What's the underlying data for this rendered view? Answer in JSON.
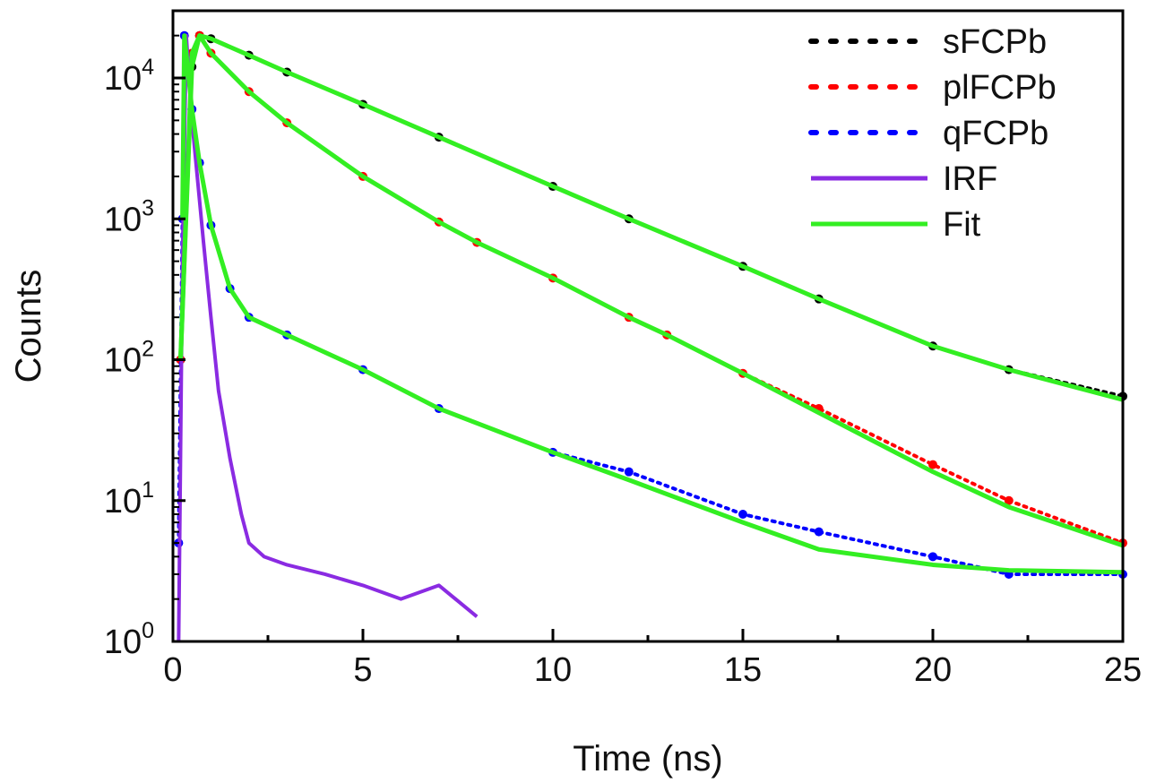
{
  "chart_data": {
    "type": "scatter",
    "xlabel": "Time (ns)",
    "ylabel": "Counts",
    "xlim": [
      0,
      25
    ],
    "ylim": [
      1,
      30000
    ],
    "yscale": "log",
    "grid": false,
    "legend_position": "top-right",
    "x_ticks": [
      0,
      5,
      10,
      15,
      20,
      25
    ],
    "x_tick_labels": [
      "0",
      "5",
      "10",
      "15",
      "20",
      "25"
    ],
    "y_ticks": [
      1,
      10,
      100,
      1000,
      10000
    ],
    "y_tick_labels": [
      {
        "base": "10",
        "exp": "0"
      },
      {
        "base": "10",
        "exp": "1"
      },
      {
        "base": "10",
        "exp": "2"
      },
      {
        "base": "10",
        "exp": "3"
      },
      {
        "base": "10",
        "exp": "4"
      }
    ],
    "series": [
      {
        "name": "sFCPb",
        "style": "dotted",
        "color": "#000000",
        "x": [
          0.2,
          0.5,
          0.7,
          1,
          2,
          3,
          5,
          7,
          10,
          12,
          15,
          17,
          20,
          22,
          25
        ],
        "y": [
          100,
          12000,
          20000,
          19000,
          14500,
          11000,
          6500,
          3800,
          1700,
          1000,
          460,
          270,
          125,
          85,
          55
        ]
      },
      {
        "name": "plFCPb",
        "style": "dotted",
        "color": "#ff0000",
        "x": [
          0.2,
          0.5,
          0.7,
          1,
          2,
          3,
          5,
          7,
          8,
          10,
          12,
          13,
          15,
          17,
          20,
          22,
          25
        ],
        "y": [
          100,
          15000,
          20000,
          15000,
          8000,
          4800,
          2000,
          950,
          680,
          380,
          200,
          150,
          80,
          45,
          18,
          10,
          5
        ]
      },
      {
        "name": "qFCPb",
        "style": "dotted",
        "color": "#0000ff",
        "x": [
          0.15,
          0.25,
          0.3,
          0.5,
          0.7,
          1,
          1.5,
          2,
          3,
          5,
          7,
          10,
          12,
          15,
          17,
          20,
          22,
          25
        ],
        "y": [
          5,
          1000,
          20000,
          6000,
          2500,
          900,
          320,
          200,
          150,
          85,
          45,
          22,
          16,
          8,
          6,
          4,
          3,
          3
        ]
      },
      {
        "name": "IRF",
        "style": "solid",
        "color": "#8a2be2",
        "x": [
          0.15,
          0.25,
          0.35,
          0.5,
          0.8,
          1,
          1.2,
          1.5,
          1.8,
          2,
          2.4,
          3,
          4,
          5,
          6,
          7,
          8
        ],
        "y": [
          1,
          500,
          20000,
          5000,
          700,
          200,
          60,
          20,
          8,
          5,
          4,
          3.5,
          3,
          2.5,
          2,
          2.5,
          1.5
        ]
      },
      {
        "name": "Fit",
        "style": "solid",
        "color": "#33ee22",
        "x": [
          0.2,
          0.5,
          0.7,
          1,
          2,
          3,
          5,
          7,
          10,
          12,
          15,
          17,
          20,
          22,
          25
        ],
        "y": [
          100,
          12000,
          20000,
          19000,
          14500,
          11000,
          6500,
          3800,
          1700,
          1000,
          460,
          270,
          125,
          85,
          52
        ]
      },
      {
        "name": "Fit",
        "style": "solid",
        "color": "#33ee22",
        "x": [
          0.2,
          0.5,
          0.7,
          1,
          2,
          3,
          5,
          7,
          8,
          10,
          12,
          13,
          15,
          17,
          20,
          22,
          25
        ],
        "y": [
          100,
          15000,
          20000,
          15000,
          8000,
          4800,
          2000,
          950,
          680,
          380,
          200,
          150,
          80,
          42,
          16,
          9,
          4.8
        ]
      },
      {
        "name": "Fit",
        "style": "solid",
        "color": "#33ee22",
        "x": [
          0.25,
          0.3,
          0.5,
          0.7,
          1,
          1.5,
          2,
          3,
          5,
          7,
          10,
          12,
          15,
          17,
          20,
          22,
          25
        ],
        "y": [
          1000,
          20000,
          6000,
          2500,
          900,
          320,
          200,
          150,
          85,
          45,
          22,
          14,
          7,
          4.5,
          3.5,
          3.2,
          3.1
        ]
      }
    ],
    "legend": [
      {
        "label": "sFCPb",
        "color": "#000000",
        "style": "dotted"
      },
      {
        "label": "plFCPb",
        "color": "#ff0000",
        "style": "dotted"
      },
      {
        "label": "qFCPb",
        "color": "#0000ff",
        "style": "dotted"
      },
      {
        "label": "IRF",
        "color": "#8a2be2",
        "style": "solid"
      },
      {
        "label": "Fit",
        "color": "#33ee22",
        "style": "solid"
      }
    ]
  }
}
